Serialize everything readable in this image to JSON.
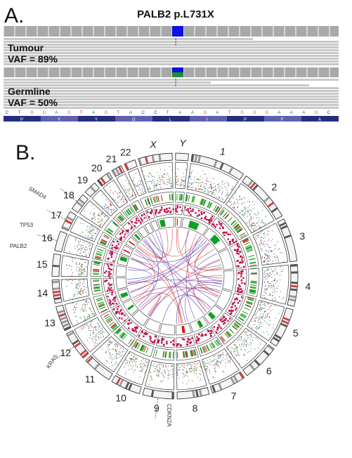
{
  "panel_a": {
    "letter": "A.",
    "title": "PALB2 p.L731X",
    "tumour": {
      "label": "Tumour",
      "vaf": "VAF = 89%"
    },
    "germline": {
      "label": "Germline",
      "vaf": "VAF = 50%"
    },
    "sequence": [
      "C",
      "T",
      "G",
      "G",
      "A",
      "G",
      "T",
      "A",
      "G",
      "T",
      "A",
      "C",
      "C",
      "T",
      "A",
      "A",
      "G",
      "A",
      "T",
      "G",
      "G",
      "G",
      "A",
      "A",
      "A",
      "G",
      "C"
    ],
    "amino_acids": [
      "P",
      "Y",
      "Y",
      "G",
      "L",
      "I",
      "P",
      "F",
      "A"
    ],
    "colors": {
      "variant_top": "#1010e0",
      "variant_het": "#1f8f2f",
      "read": "#c8c8c8",
      "track_dark": "#1c2d6b"
    }
  },
  "panel_b": {
    "letter": "B.",
    "chromosomes": [
      "1",
      "2",
      "3",
      "4",
      "5",
      "6",
      "7",
      "8",
      "9",
      "10",
      "11",
      "12",
      "13",
      "14",
      "15",
      "16",
      "17",
      "18",
      "19",
      "20",
      "21",
      "22",
      "X",
      "Y"
    ],
    "genes": [
      "SMAD4",
      "TP53",
      "PALB2",
      "KRAS",
      "CDKN2A"
    ]
  }
}
